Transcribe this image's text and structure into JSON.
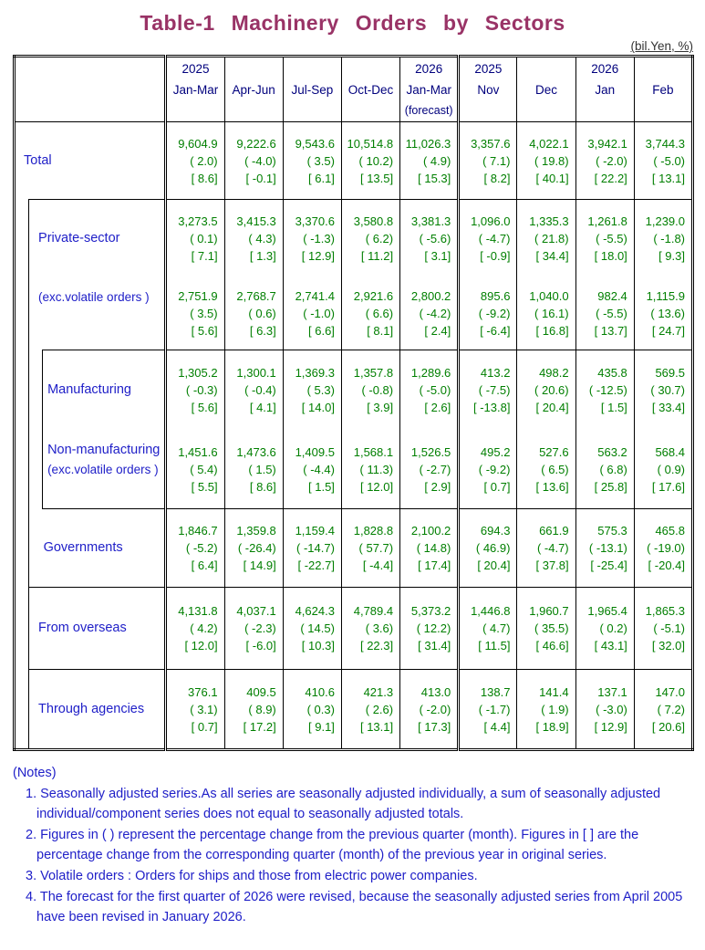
{
  "title": "Table-1 Machinery Orders by Sectors",
  "units": "(bil.Yen, %)",
  "colors": {
    "title": "#993366",
    "column_header": "#00007D",
    "row_label": "#2020C8",
    "value": "#007F00",
    "notes": "#2020C8",
    "border": "#000000"
  },
  "table": {
    "col_headers": [
      {
        "year": "2025",
        "period": "Jan-Mar",
        "note": ""
      },
      {
        "year": "",
        "period": "Apr-Jun",
        "note": ""
      },
      {
        "year": "",
        "period": "Jul-Sep",
        "note": ""
      },
      {
        "year": "",
        "period": "Oct-Dec",
        "note": ""
      },
      {
        "year": "2026",
        "period": "Jan-Mar",
        "note": "(forecast)"
      },
      {
        "year": "2025",
        "period": "Nov",
        "note": ""
      },
      {
        "year": "",
        "period": "Dec",
        "note": ""
      },
      {
        "year": "2026",
        "period": "Jan",
        "note": ""
      },
      {
        "year": "",
        "period": "Feb",
        "note": ""
      }
    ],
    "cell_line_meaning": [
      "value_bil_yen",
      "pct_change_prev_period",
      "pct_change_prev_year"
    ],
    "rows": [
      {
        "label": "Total",
        "sublabel": "",
        "indent": 0,
        "box_top": false,
        "split": false,
        "label_top": false,
        "small": false,
        "cells": [
          [
            "9,604.9",
            "( 2.0)",
            "[ 8.6]"
          ],
          [
            "9,222.6",
            "( -4.0)",
            "[ -0.1]"
          ],
          [
            "9,543.6",
            "( 3.5)",
            "[ 6.1]"
          ],
          [
            "10,514.8",
            "( 10.2)",
            "[ 13.5]"
          ],
          [
            "11,026.3",
            "( 4.9)",
            "[ 15.3]"
          ],
          [
            "3,357.6",
            "( 7.1)",
            "[ 8.2]"
          ],
          [
            "4,022.1",
            "( 19.8)",
            "[ 40.1]"
          ],
          [
            "3,942.1",
            "( -2.0)",
            "[ 22.2]"
          ],
          [
            "3,744.3",
            "( -5.0)",
            "[ 13.1]"
          ]
        ]
      },
      {
        "label": "Private-sector",
        "sublabel": "",
        "indent": 1,
        "box_top": true,
        "split": false,
        "label_top": false,
        "small": false,
        "cells": [
          [
            "3,273.5",
            "( 0.1)",
            "[ 7.1]"
          ],
          [
            "3,415.3",
            "( 4.3)",
            "[ 1.3]"
          ],
          [
            "3,370.6",
            "( -1.3)",
            "[ 12.9]"
          ],
          [
            "3,580.8",
            "( 6.2)",
            "[ 11.2]"
          ],
          [
            "3,381.3",
            "( -5.6)",
            "[ 3.1]"
          ],
          [
            "1,096.0",
            "( -4.7)",
            "[ -0.9]"
          ],
          [
            "1,335.3",
            "( 21.8)",
            "[ 34.4]"
          ],
          [
            "1,261.8",
            "( -5.5)",
            "[ 18.0]"
          ],
          [
            "1,239.0",
            "( -1.8)",
            "[ 9.3]"
          ]
        ]
      },
      {
        "label": "(exc.volatile orders )",
        "sublabel": "",
        "indent": 1,
        "box_top": false,
        "split": false,
        "label_top": true,
        "small": true,
        "cells": [
          [
            "2,751.9",
            "( 3.5)",
            "[ 5.6]"
          ],
          [
            "2,768.7",
            "( 0.6)",
            "[ 6.3]"
          ],
          [
            "2,741.4",
            "( -1.0)",
            "[ 6.6]"
          ],
          [
            "2,921.6",
            "( 6.6)",
            "[ 8.1]"
          ],
          [
            "2,800.2",
            "( -4.2)",
            "[ 2.4]"
          ],
          [
            "895.6",
            "( -9.2)",
            "[ -6.4]"
          ],
          [
            "1,040.0",
            "( 16.1)",
            "[ 16.8]"
          ],
          [
            "982.4",
            "( -5.5)",
            "[ 13.7]"
          ],
          [
            "1,115.9",
            "( 13.6)",
            "[ 24.7]"
          ]
        ]
      },
      {
        "label": "Manufacturing",
        "sublabel": "",
        "indent": 2,
        "box_top": true,
        "split": false,
        "label_top": false,
        "small": false,
        "cells": [
          [
            "1,305.2",
            "( -0.3)",
            "[ 5.6]"
          ],
          [
            "1,300.1",
            "( -0.4)",
            "[ 4.1]"
          ],
          [
            "1,369.3",
            "( 5.3)",
            "[ 14.0]"
          ],
          [
            "1,357.8",
            "( -0.8)",
            "[ 3.9]"
          ],
          [
            "1,289.6",
            "( -5.0)",
            "[ 2.6]"
          ],
          [
            "413.2",
            "( -7.5)",
            "[ -13.8]"
          ],
          [
            "498.2",
            "( 20.6)",
            "[ 20.4]"
          ],
          [
            "435.8",
            "( -12.5)",
            "[ 1.5]"
          ],
          [
            "569.5",
            "( 30.7)",
            "[ 33.4]"
          ]
        ]
      },
      {
        "label": "Non-manufacturing",
        "sublabel": "(exc.volatile orders )",
        "indent": 2,
        "box_top": false,
        "split": false,
        "label_top": true,
        "small": false,
        "cells": [
          [
            "1,451.6",
            "( 5.4)",
            "[ 5.5]"
          ],
          [
            "1,473.6",
            "( 1.5)",
            "[ 8.6]"
          ],
          [
            "1,409.5",
            "( -4.4)",
            "[ 1.5]"
          ],
          [
            "1,568.1",
            "( 11.3)",
            "[ 12.0]"
          ],
          [
            "1,526.5",
            "( -2.7)",
            "[ 2.9]"
          ],
          [
            "495.2",
            "( -9.2)",
            "[ 0.7]"
          ],
          [
            "527.6",
            "( 6.5)",
            "[ 13.6]"
          ],
          [
            "563.2",
            "( 6.8)",
            "[ 25.8]"
          ],
          [
            "568.4",
            "( 0.9)",
            "[ 17.6]"
          ]
        ]
      },
      {
        "label": "Governments",
        "sublabel": "",
        "indent": 1,
        "box_top": true,
        "split": true,
        "label_top": false,
        "small": false,
        "cells": [
          [
            "1,846.7",
            "( -5.2)",
            "[ 6.4]"
          ],
          [
            "1,359.8",
            "( -26.4)",
            "[ 14.9]"
          ],
          [
            "1,159.4",
            "( -14.7)",
            "[ -22.7]"
          ],
          [
            "1,828.8",
            "( 57.7)",
            "[ -4.4]"
          ],
          [
            "2,100.2",
            "( 14.8)",
            "[ 17.4]"
          ],
          [
            "694.3",
            "( 46.9)",
            "[ 20.4]"
          ],
          [
            "661.9",
            "( -4.7)",
            "[ 37.8]"
          ],
          [
            "575.3",
            "( -13.1)",
            "[ -25.4]"
          ],
          [
            "465.8",
            "( -19.0)",
            "[ -20.4]"
          ]
        ]
      },
      {
        "label": "From overseas",
        "sublabel": "",
        "indent": 1,
        "box_top": true,
        "split": false,
        "label_top": false,
        "small": false,
        "cells": [
          [
            "4,131.8",
            "( 4.2)",
            "[ 12.0]"
          ],
          [
            "4,037.1",
            "( -2.3)",
            "[ -6.0]"
          ],
          [
            "4,624.3",
            "( 14.5)",
            "[ 10.3]"
          ],
          [
            "4,789.4",
            "( 3.6)",
            "[ 22.3]"
          ],
          [
            "5,373.2",
            "( 12.2)",
            "[ 31.4]"
          ],
          [
            "1,446.8",
            "( 4.7)",
            "[ 11.5]"
          ],
          [
            "1,960.7",
            "( 35.5)",
            "[ 46.6]"
          ],
          [
            "1,965.4",
            "( 0.2)",
            "[ 43.1]"
          ],
          [
            "1,865.3",
            "( -5.1)",
            "[ 32.0]"
          ]
        ]
      },
      {
        "label": "Through agencies",
        "sublabel": "",
        "indent": 1,
        "box_top": true,
        "split": false,
        "label_top": false,
        "small": false,
        "cells": [
          [
            "376.1",
            "( 3.1)",
            "[ 0.7]"
          ],
          [
            "409.5",
            "( 8.9)",
            "[ 17.2]"
          ],
          [
            "410.6",
            "( 0.3)",
            "[ 9.1]"
          ],
          [
            "421.3",
            "( 2.6)",
            "[ 13.1]"
          ],
          [
            "413.0",
            "( -2.0)",
            "[ 17.3]"
          ],
          [
            "138.7",
            "( -1.7)",
            "[ 4.4]"
          ],
          [
            "141.4",
            "( 1.9)",
            "[ 18.9]"
          ],
          [
            "137.1",
            "( -3.0)",
            "[ 12.9]"
          ],
          [
            "147.0",
            "( 7.2)",
            "[ 20.6]"
          ]
        ]
      }
    ]
  },
  "notes": {
    "heading": "(Notes)",
    "items": [
      "1. Seasonally adjusted series.As all series are seasonally adjusted individually, a sum of seasonally adjusted individual/component series does not equal to seasonally adjusted totals.",
      "2. Figures in ( ) represent the percentage change from the previous quarter (month). Figures in [ ] are the percentage change from the corresponding quarter (month) of the previous year in original series.",
      "3. Volatile orders : Orders for ships and those from electric power companies.",
      "4. The forecast for the first quarter of 2026 were revised, because the seasonally adjusted series from April 2005 have been revised in January 2026."
    ]
  }
}
